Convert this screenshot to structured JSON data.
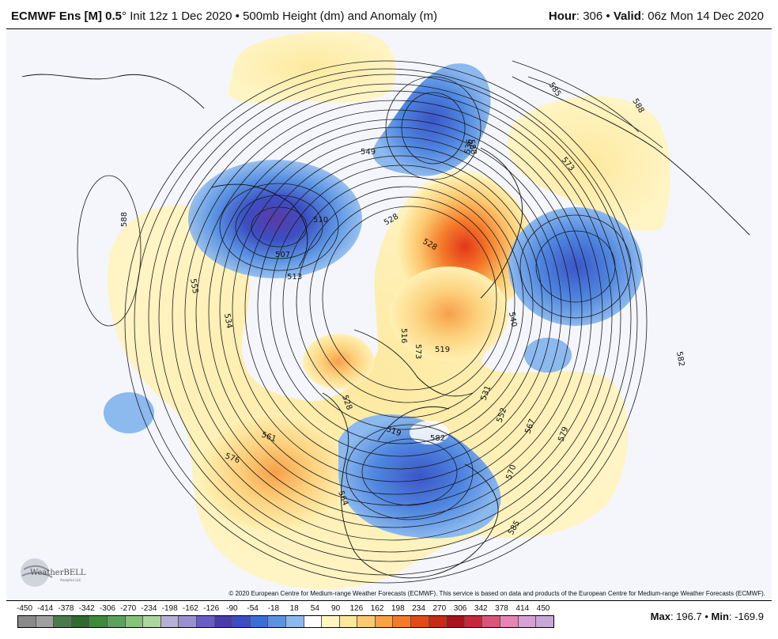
{
  "header": {
    "model": "ECMWF Ens [M] 0.5",
    "degree": "°",
    "init": "Init 12z 1 Dec 2020",
    "bullet": "•",
    "product": "500mb Height (dm) and Anomaly (m)",
    "hour_label": "Hour",
    "hour_value": ": 306",
    "valid_label": "Valid",
    "valid_value": ": 06z Mon 14 Dec 2020"
  },
  "map": {
    "contour_labels": [
      {
        "text": "585"
      },
      {
        "text": "588"
      },
      {
        "text": "588"
      },
      {
        "text": "573"
      },
      {
        "text": "582"
      },
      {
        "text": "549"
      },
      {
        "text": "510"
      },
      {
        "text": "507"
      },
      {
        "text": "513"
      },
      {
        "text": "588"
      },
      {
        "text": "555"
      },
      {
        "text": "534"
      },
      {
        "text": "528"
      },
      {
        "text": "528"
      },
      {
        "text": "519"
      },
      {
        "text": "540"
      },
      {
        "text": "516"
      },
      {
        "text": "573"
      },
      {
        "text": "531"
      },
      {
        "text": "552"
      },
      {
        "text": "567"
      },
      {
        "text": "579"
      },
      {
        "text": "570"
      },
      {
        "text": "585"
      },
      {
        "text": "561"
      },
      {
        "text": "576"
      },
      {
        "text": "582"
      },
      {
        "text": "564"
      },
      {
        "text": "536"
      },
      {
        "text": "519"
      },
      {
        "text": "528"
      }
    ],
    "logo_text": "WeatherBELL",
    "logo_sub": "Analytics LLC"
  },
  "copyright": "© 2020 European Centre for Medium-range Weather Forecasts (ECMWF). This service is based on data and products of the European Centre for Medium-range Weather Forecasts (ECMWF).",
  "legend": {
    "ticks": [
      "-450",
      "-414",
      "-378",
      "-342",
      "-306",
      "-270",
      "-234",
      "-198",
      "-162",
      "-126",
      "-90",
      "-54",
      "-18",
      "18",
      "54",
      "90",
      "126",
      "162",
      "198",
      "234",
      "270",
      "306",
      "342",
      "378",
      "414",
      "450"
    ],
    "colors": [
      "#8a8a8a",
      "#a0a0a0",
      "#4d7a4d",
      "#2e6b2e",
      "#3d8a3d",
      "#5aa35a",
      "#86c27a",
      "#aed69c",
      "#b7b0d6",
      "#9a8fd0",
      "#6b5cc4",
      "#4a3aa8",
      "#3b4fc2",
      "#3b6fd8",
      "#5a93e3",
      "#8cb9ee",
      "#ffffff",
      "#fff6bf",
      "#fde79a",
      "#fcc970",
      "#f9a146",
      "#f47a2a",
      "#e24a18",
      "#c72b14",
      "#a8141a",
      "#c7273d",
      "#d9557a",
      "#e686b3",
      "#d9a0d6",
      "#c7a8d6"
    ],
    "max_label": "Max",
    "max_value": ": 196.7",
    "sep": "•",
    "min_label": "Min",
    "min_value": ": -169.9"
  }
}
